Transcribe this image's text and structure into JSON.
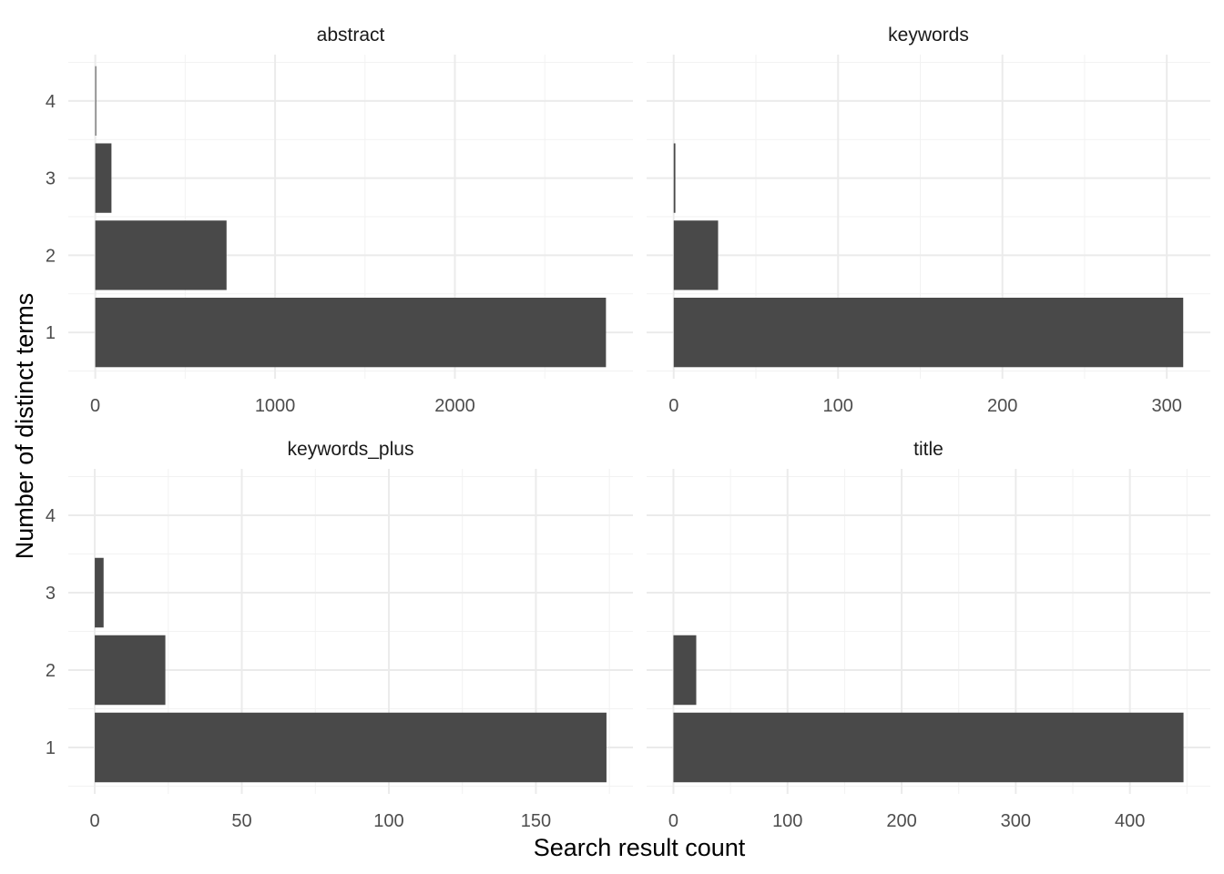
{
  "chart_data": {
    "type": "bar",
    "orientation": "horizontal",
    "facet_layout": "2x2",
    "grid": true,
    "xlabel": "Search result count",
    "ylabel": "Number of distinct terms",
    "categories": [
      "1",
      "2",
      "3",
      "4"
    ],
    "bar_color": "#494949",
    "panels": [
      {
        "title": "abstract",
        "values": [
          2840,
          730,
          90,
          4
        ],
        "xlim": [
          -150,
          2990
        ],
        "xticks": [
          0,
          1000,
          2000
        ],
        "xtick_labels": [
          "0",
          "1000",
          "2000"
        ]
      },
      {
        "title": "keywords",
        "values": [
          310,
          27,
          1,
          0
        ],
        "xlim": [
          -16.5,
          326.5
        ],
        "xticks": [
          0,
          100,
          200,
          300
        ],
        "xtick_labels": [
          "0",
          "100",
          "200",
          "300"
        ]
      },
      {
        "title": "keywords_plus",
        "values": [
          174,
          24,
          3,
          0
        ],
        "xlim": [
          -9,
          183
        ],
        "xticks": [
          0,
          50,
          100,
          150
        ],
        "xtick_labels": [
          "0",
          "50",
          "100",
          "150"
        ]
      },
      {
        "title": "title",
        "values": [
          447,
          20,
          0,
          0
        ],
        "xlim": [
          -23.5,
          470.5
        ],
        "xticks": [
          0,
          100,
          200,
          300,
          400
        ],
        "xtick_labels": [
          "0",
          "100",
          "200",
          "300",
          "400"
        ]
      }
    ]
  }
}
